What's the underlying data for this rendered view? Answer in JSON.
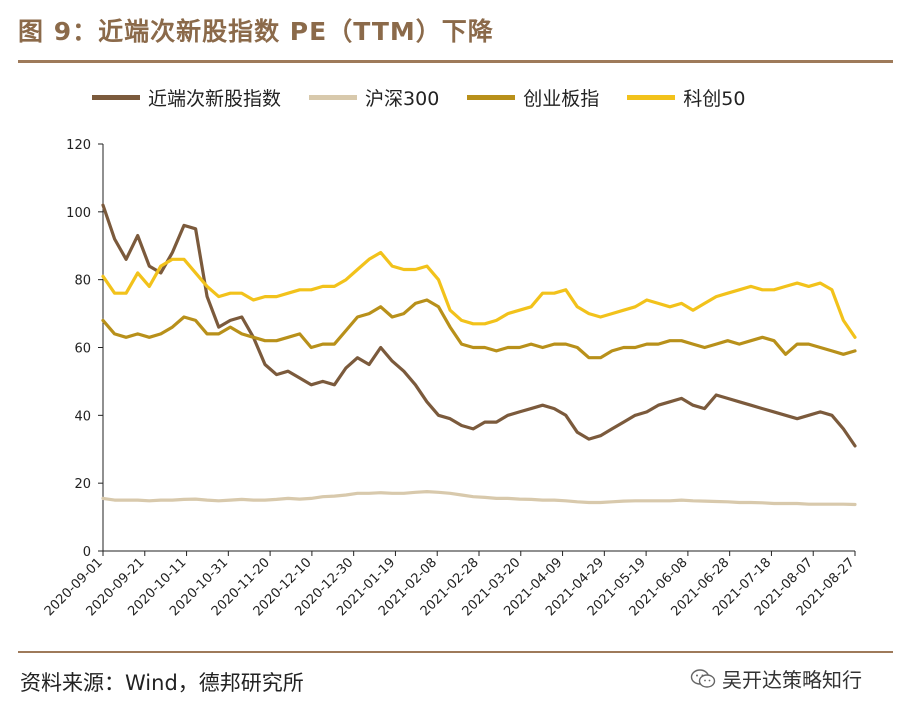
{
  "header": {
    "title": "图 9：近端次新股指数 PE（TTM）下降"
  },
  "footer": {
    "source": "资料来源：Wind，德邦研究所",
    "watermark": "吴开达策略知行"
  },
  "chart_data": {
    "type": "line",
    "ylim": [
      0,
      120
    ],
    "yticks": [
      0,
      20,
      40,
      60,
      80,
      100,
      120
    ],
    "legend_position": "top",
    "grid": false,
    "xticks": [
      "2020-09-01",
      "2020-09-21",
      "2020-10-11",
      "2020-10-31",
      "2020-11-20",
      "2020-12-10",
      "2020-12-30",
      "2021-01-19",
      "2021-02-08",
      "2021-02-28",
      "2021-03-20",
      "2021-04-09",
      "2021-04-29",
      "2021-05-19",
      "2021-06-08",
      "2021-06-28",
      "2021-07-18",
      "2021-08-07",
      "2021-08-27"
    ],
    "series": [
      {
        "name": "近端次新股指数",
        "color": "#7B5A3C",
        "values": [
          102,
          92,
          86,
          93,
          84,
          82,
          88,
          96,
          95,
          75,
          66,
          68,
          69,
          63,
          55,
          52,
          53,
          51,
          49,
          50,
          49,
          54,
          57,
          55,
          60,
          56,
          53,
          49,
          44,
          40,
          39,
          37,
          36,
          38,
          38,
          40,
          41,
          42,
          43,
          42,
          40,
          35,
          33,
          34,
          36,
          38,
          40,
          41,
          43,
          44,
          45,
          43,
          42,
          46,
          45,
          44,
          43,
          42,
          41,
          40,
          39,
          40,
          41,
          40,
          36,
          31
        ]
      },
      {
        "name": "沪深300",
        "color": "#D8C9AC",
        "values": [
          15.5,
          15,
          15,
          15,
          14.8,
          15,
          15,
          15.2,
          15.3,
          15,
          14.8,
          15,
          15.2,
          15,
          15,
          15.2,
          15.5,
          15.3,
          15.5,
          16,
          16.2,
          16.5,
          17,
          17,
          17.2,
          17,
          17,
          17.3,
          17.5,
          17.3,
          17,
          16.5,
          16,
          15.8,
          15.5,
          15.5,
          15.3,
          15.2,
          15,
          15,
          14.8,
          14.5,
          14.3,
          14.3,
          14.5,
          14.7,
          14.8,
          14.8,
          14.8,
          14.8,
          15,
          14.8,
          14.7,
          14.6,
          14.5,
          14.3,
          14.3,
          14.2,
          14,
          14,
          14,
          13.8,
          13.8,
          13.8,
          13.8,
          13.7
        ]
      },
      {
        "name": "创业板指",
        "color": "#B8901A",
        "values": [
          68,
          64,
          63,
          64,
          63,
          64,
          66,
          69,
          68,
          64,
          64,
          66,
          64,
          63,
          62,
          62,
          63,
          64,
          60,
          61,
          61,
          65,
          69,
          70,
          72,
          69,
          70,
          73,
          74,
          72,
          66,
          61,
          60,
          60,
          59,
          60,
          60,
          61,
          60,
          61,
          61,
          60,
          57,
          57,
          59,
          60,
          60,
          61,
          61,
          62,
          62,
          61,
          60,
          61,
          62,
          61,
          62,
          63,
          62,
          58,
          61,
          61,
          60,
          59,
          58,
          59
        ]
      },
      {
        "name": "科创50",
        "color": "#F2C21B",
        "values": [
          81,
          76,
          76,
          82,
          78,
          84,
          86,
          86,
          82,
          78,
          75,
          76,
          76,
          74,
          75,
          75,
          76,
          77,
          77,
          78,
          78,
          80,
          83,
          86,
          88,
          84,
          83,
          83,
          84,
          80,
          71,
          68,
          67,
          67,
          68,
          70,
          71,
          72,
          76,
          76,
          77,
          72,
          70,
          69,
          70,
          71,
          72,
          74,
          73,
          72,
          73,
          71,
          73,
          75,
          76,
          77,
          78,
          77,
          77,
          78,
          79,
          78,
          79,
          77,
          68,
          63
        ]
      }
    ]
  }
}
